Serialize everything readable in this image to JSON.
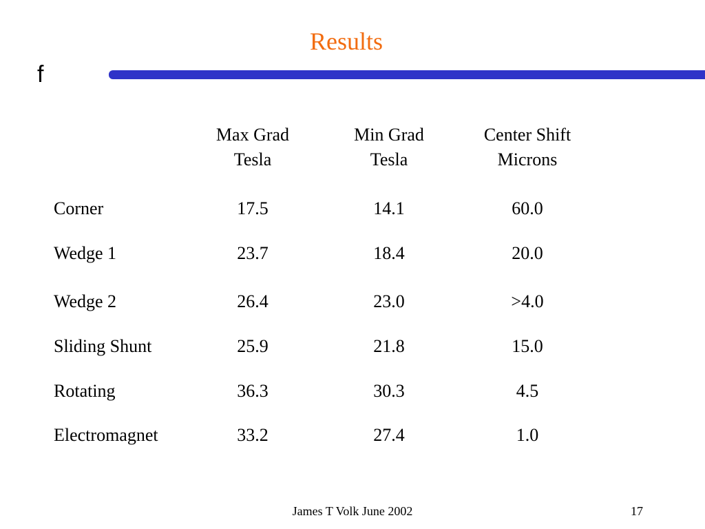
{
  "slide": {
    "title": "Results",
    "logo_glyph": "f",
    "rule_color": "#2f33c8",
    "title_color": "#f26c10"
  },
  "table": {
    "columns": [
      {
        "line1": "Max Grad",
        "line2": "Tesla"
      },
      {
        "line1": "Min Grad",
        "line2": "Tesla"
      },
      {
        "line1": "Center Shift",
        "line2": "Microns"
      }
    ],
    "rows": [
      {
        "label": "Corner",
        "values": [
          "17.5",
          "14.1",
          "60.0"
        ]
      },
      {
        "label": "Wedge 1",
        "values": [
          "23.7",
          "18.4",
          "20.0"
        ]
      },
      {
        "label": "Wedge 2",
        "values": [
          "26.4",
          "23.0",
          ">4.0"
        ]
      },
      {
        "label": "Sliding Shunt",
        "values": [
          "25.9",
          "21.8",
          "15.0"
        ]
      },
      {
        "label": "Rotating",
        "values": [
          "36.3",
          "30.3",
          "4.5"
        ]
      },
      {
        "label": "Electromagnet",
        "values": [
          "33.2",
          "27.4",
          "1.0"
        ]
      }
    ]
  },
  "footer": {
    "credit": "James T Volk June 2002",
    "page_number": "17"
  }
}
